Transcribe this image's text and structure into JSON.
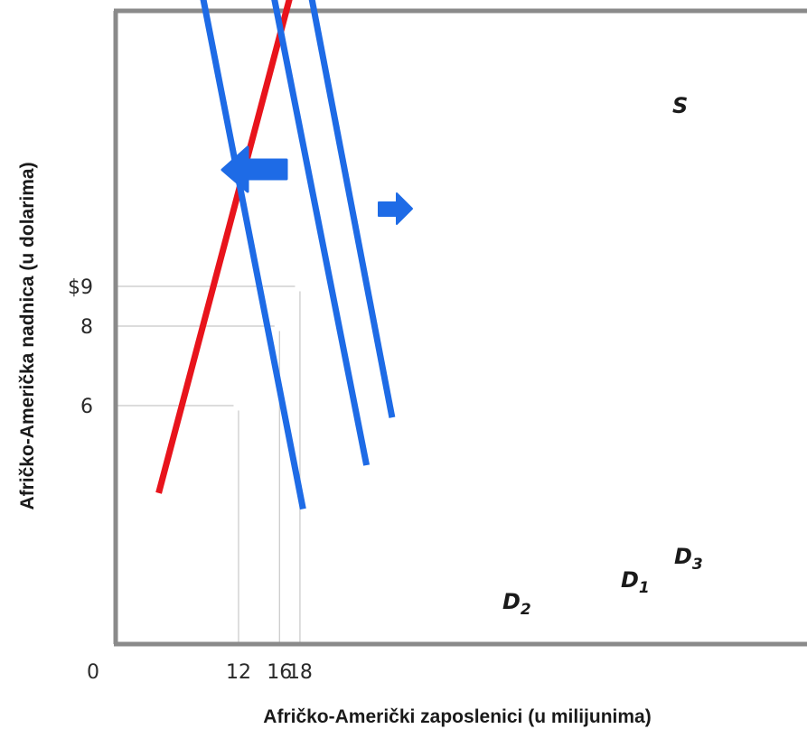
{
  "chart_data": {
    "type": "line",
    "xlabel": "Afričko-Američki zaposlenici (u milijunima)",
    "ylabel": "Afričko-Američka nadnica (u dolarima)",
    "x_ticks": [
      "0",
      "12",
      "16",
      "18"
    ],
    "y_ticks": [
      "$9",
      "8",
      "6"
    ],
    "xlim": [
      0,
      32
    ],
    "ylim": [
      0,
      17.5
    ],
    "series": [
      {
        "name": "S",
        "label_main": "S",
        "label_sub": "",
        "color": "#e8141c",
        "x": [
          4.2,
          26.5
        ],
        "y": [
          3.8,
          25.5
        ]
      },
      {
        "name": "D1",
        "label_main": "D",
        "label_sub": "1",
        "color": "#1e6be6",
        "x": [
          7.0,
          24.5
        ],
        "y": [
          27.3,
          4.5
        ]
      },
      {
        "name": "D2",
        "label_main": "D",
        "label_sub": "2",
        "color": "#1e6be6",
        "x": [
          2.5,
          18.3
        ],
        "y": [
          24.2,
          3.4
        ]
      },
      {
        "name": "D3",
        "label_main": "D",
        "label_sub": "3",
        "color": "#1e6be6",
        "x": [
          9.2,
          27.0
        ],
        "y": [
          29.6,
          5.7
        ]
      }
    ],
    "equilibria": [
      {
        "x": 12,
        "y": 6
      },
      {
        "x": 16,
        "y": 8
      },
      {
        "x": 18,
        "y": 9
      }
    ],
    "arrows": [
      {
        "direction": "left",
        "size": "large"
      },
      {
        "direction": "right",
        "size": "small"
      }
    ],
    "grid": false
  }
}
